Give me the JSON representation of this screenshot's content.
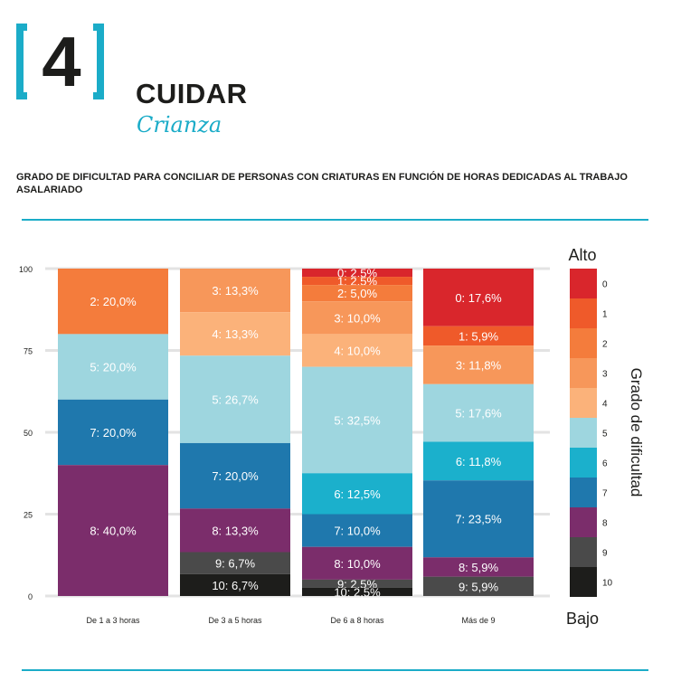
{
  "header": {
    "section_number": "4",
    "title": "CUIDAR",
    "subtitle": "Crianza"
  },
  "chart_data": {
    "type": "bar",
    "stacked": true,
    "title": "GRADO DE DIFICULTAD PARA CONCILIAR DE PERSONAS CON CRIATURAS EN FUNCIÓN DE HORAS DEDICADAS AL TRABAJO ASALARIADO",
    "categories": [
      "De 1 a 3 horas",
      "De 3 a 5 horas",
      "De 6 a 8 horas",
      "Más de 9"
    ],
    "ylim": [
      0,
      100
    ],
    "yticks": [
      "0",
      "25",
      "50",
      "75",
      "100"
    ],
    "legend_title": "Grado de dificultad",
    "legend_top_label": "Alto",
    "legend_bottom_label": "Bajo",
    "series": [
      {
        "name": "0",
        "color": "#d9262c",
        "values": [
          0,
          0,
          2.5,
          17.6
        ],
        "labels": [
          "",
          "",
          "0:  2,5%",
          "0: 17,6%"
        ]
      },
      {
        "name": "1",
        "color": "#ef5a2a",
        "values": [
          0,
          0,
          2.5,
          5.9
        ],
        "labels": [
          "",
          "",
          "1:  2,5%",
          "1:  5,9%"
        ]
      },
      {
        "name": "2",
        "color": "#f47c3c",
        "values": [
          20.0,
          0,
          5.0,
          0
        ],
        "labels": [
          "2: 20,0%",
          "",
          "2:  5,0%",
          ""
        ]
      },
      {
        "name": "3",
        "color": "#f7975a",
        "values": [
          0,
          13.3,
          10.0,
          11.8
        ],
        "labels": [
          "",
          "3: 13,3%",
          "3: 10,0%",
          "3: 11,8%"
        ]
      },
      {
        "name": "4",
        "color": "#fbb27a",
        "values": [
          0,
          13.3,
          10.0,
          0
        ],
        "labels": [
          "",
          "4: 13,3%",
          "4: 10,0%",
          ""
        ]
      },
      {
        "name": "5",
        "color": "#9ed6df",
        "values": [
          20.0,
          26.7,
          32.5,
          17.6
        ],
        "labels": [
          "5: 20,0%",
          "5: 26,7%",
          "5: 32,5%",
          "5: 17,6%"
        ]
      },
      {
        "name": "6",
        "color": "#1bb0cc",
        "values": [
          0,
          0,
          12.5,
          11.8
        ],
        "labels": [
          "",
          "",
          "6: 12,5%",
          "6: 11,8%"
        ]
      },
      {
        "name": "7",
        "color": "#1f78ad",
        "values": [
          20.0,
          20.0,
          10.0,
          23.5
        ],
        "labels": [
          "7: 20,0%",
          "7: 20,0%",
          "7: 10,0%",
          "7: 23,5%"
        ]
      },
      {
        "name": "8",
        "color": "#7b2d6b",
        "values": [
          40.0,
          13.3,
          10.0,
          5.9
        ],
        "labels": [
          "8: 40,0%",
          "8: 13,3%",
          "8: 10,0%",
          "8:  5,9%"
        ]
      },
      {
        "name": "9",
        "color": "#4a4a4a",
        "values": [
          0,
          6.7,
          2.5,
          5.9
        ],
        "labels": [
          "",
          "9:  6,7%",
          "9:  2,5%",
          "9:  5,9%"
        ]
      },
      {
        "name": "10",
        "color": "#1d1d1b",
        "values": [
          0,
          6.7,
          2.5,
          0
        ],
        "labels": [
          "",
          "10:  6,7%",
          "10:  2,5%",
          ""
        ]
      }
    ]
  }
}
